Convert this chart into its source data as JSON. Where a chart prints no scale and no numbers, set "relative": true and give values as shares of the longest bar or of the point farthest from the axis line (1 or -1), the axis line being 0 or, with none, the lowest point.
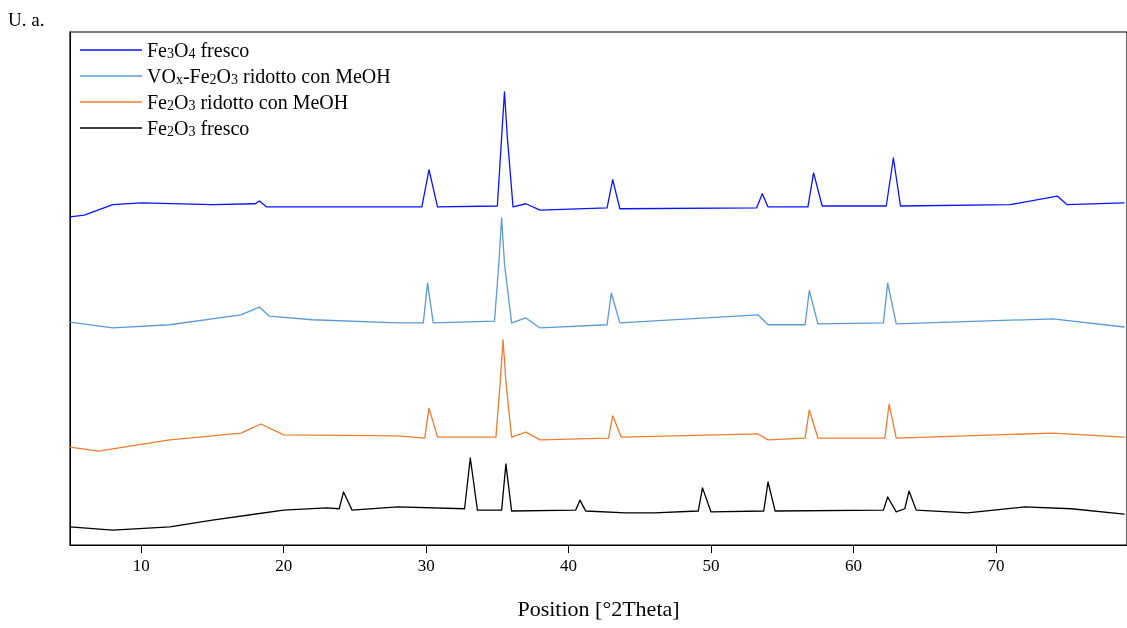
{
  "chart_data": {
    "type": "line",
    "xlabel": "Position [°2Theta]",
    "ylabel": "U. a.",
    "relative": true,
    "xlim": [
      5,
      79.2
    ],
    "xticks": [
      10,
      20,
      30,
      40,
      50,
      60,
      70
    ],
    "grid": false,
    "legend": "top left",
    "marker": "none",
    "line_style": "solid",
    "series": [
      {
        "name": "Fe$_{3}$O$_{4}$ fresco",
        "color": "#0a14ff",
        "x": [
          5,
          6,
          8,
          10,
          15,
          18,
          18.3,
          18.8,
          25,
          29.7,
          30.2,
          30.8,
          35.0,
          35.3,
          35.5,
          35.7,
          36.1,
          37,
          38,
          42.7,
          43.1,
          43.6,
          53.2,
          53.6,
          54,
          56.8,
          57.2,
          57.8,
          62.3,
          62.8,
          63.3,
          71,
          74.3,
          75,
          79
        ],
        "values": [
          0.724,
          0.728,
          0.751,
          0.755,
          0.751,
          0.753,
          0.759,
          0.746,
          0.746,
          0.746,
          0.828,
          0.746,
          0.748,
          0.9,
          1,
          0.9,
          0.746,
          0.753,
          0.739,
          0.744,
          0.806,
          0.742,
          0.744,
          0.775,
          0.746,
          0.746,
          0.821,
          0.748,
          0.748,
          0.854,
          0.748,
          0.751,
          0.77,
          0.751,
          0.755
        ]
      },
      {
        "name": "VO$_{x}$-Fe$_{2}$O$_{3}$ ridotto con MeOH",
        "color": "#5b9bd5",
        "x": [
          5,
          8,
          12,
          17,
          18.3,
          19,
          22,
          28,
          29.8,
          30.1,
          30.5,
          34.8,
          35.1,
          35.3,
          35.5,
          36,
          37,
          38,
          42.7,
          43,
          43.6,
          53.3,
          54,
          56.6,
          56.9,
          57.5,
          62.1,
          62.4,
          63,
          74,
          79
        ],
        "values": [
          0.492,
          0.479,
          0.486,
          0.508,
          0.525,
          0.505,
          0.497,
          0.49,
          0.49,
          0.578,
          0.49,
          0.494,
          0.62,
          0.722,
          0.62,
          0.49,
          0.501,
          0.479,
          0.486,
          0.556,
          0.49,
          0.508,
          0.486,
          0.486,
          0.561,
          0.488,
          0.49,
          0.578,
          0.488,
          0.499,
          0.481
        ]
      },
      {
        "name": "Fe$_{2}$O$_{3}$ ridotto con MeOH",
        "color": "#ed7d31",
        "x": [
          5,
          7,
          12,
          17,
          18.4,
          20,
          28,
          29.9,
          30.2,
          30.8,
          34.9,
          35.2,
          35.4,
          35.6,
          36,
          37,
          38,
          42.8,
          43.1,
          43.7,
          53.3,
          54,
          56.6,
          56.9,
          57.5,
          62.2,
          62.5,
          63,
          74,
          79
        ],
        "values": [
          0.216,
          0.207,
          0.232,
          0.247,
          0.267,
          0.243,
          0.241,
          0.236,
          0.302,
          0.238,
          0.238,
          0.36,
          0.453,
          0.36,
          0.238,
          0.249,
          0.232,
          0.236,
          0.285,
          0.238,
          0.245,
          0.232,
          0.236,
          0.298,
          0.236,
          0.236,
          0.311,
          0.236,
          0.247,
          0.238
        ]
      },
      {
        "name": "Fe$_{2}$O$_{3}$ fresco",
        "color": "#000000",
        "x": [
          5,
          8,
          12,
          15,
          20,
          23,
          23.9,
          24.2,
          24.8,
          28,
          32.7,
          33.1,
          33.6,
          35.3,
          35.6,
          36,
          40.5,
          40.8,
          41.2,
          44,
          46,
          49.1,
          49.4,
          50,
          53.7,
          54,
          54.5,
          62.1,
          62.4,
          63,
          63.6,
          63.9,
          64.4,
          68,
          72,
          75.3,
          79
        ],
        "values": [
          0.04,
          0.033,
          0.04,
          0.055,
          0.077,
          0.082,
          0.08,
          0.117,
          0.077,
          0.084,
          0.08,
          0.192,
          0.077,
          0.077,
          0.179,
          0.075,
          0.077,
          0.099,
          0.075,
          0.071,
          0.071,
          0.075,
          0.126,
          0.073,
          0.075,
          0.139,
          0.075,
          0.077,
          0.106,
          0.073,
          0.08,
          0.119,
          0.077,
          0.071,
          0.084,
          0.08,
          0.068
        ]
      }
    ]
  }
}
